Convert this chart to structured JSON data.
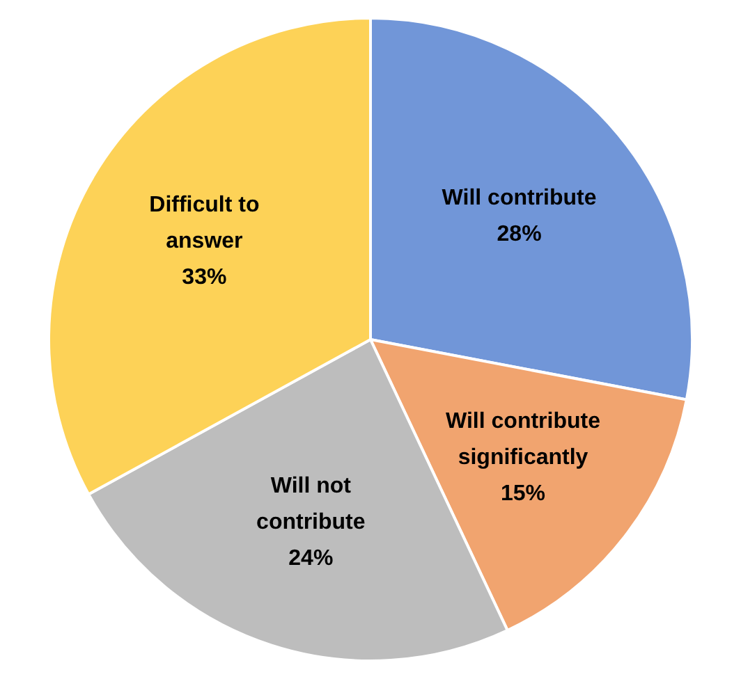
{
  "chart_data": {
    "type": "pie",
    "categories": [
      "Will contribute",
      "Will contribute significantly",
      "Will not contribute",
      "Difficult to answer"
    ],
    "values": [
      28,
      15,
      24,
      33
    ],
    "colors": [
      "#7196d8",
      "#f1a46f",
      "#bdbdbd",
      "#fdd257"
    ],
    "value_labels": [
      "28%",
      "15%",
      "24%",
      "33%"
    ],
    "legend": false
  }
}
